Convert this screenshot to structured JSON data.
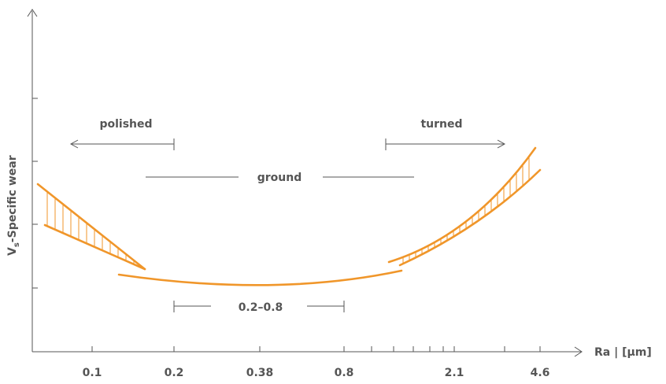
{
  "chart_data": {
    "type": "line",
    "xlabel": "Ra | [µm]",
    "ylabel": "V",
    "ylabel_sub": "s",
    "ylabel_rest": "-Specific wear",
    "x_tick_labels": [
      "0.1",
      "0.2",
      "0.38",
      "0.8",
      "2.1",
      "4.6"
    ],
    "colors": {
      "curve": "#f0962a",
      "axis": "#555555",
      "text": "#555555"
    },
    "annotations": {
      "polished": "polished",
      "turned": "turned",
      "ground": "ground",
      "range": "0.2–0.8"
    },
    "grid": false
  }
}
